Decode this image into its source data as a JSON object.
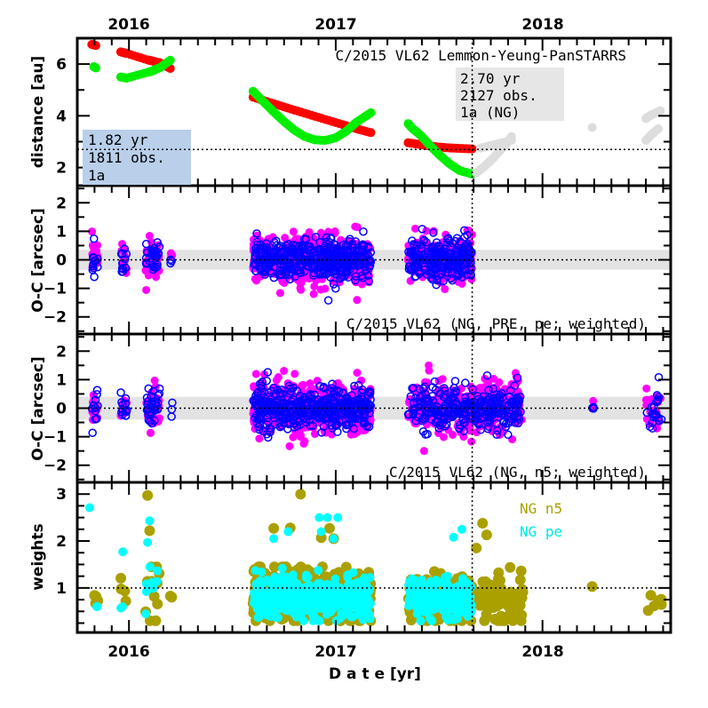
{
  "chart_data": [
    {
      "type": "scatter",
      "panel": "distance",
      "title": "C/2015 VL62 Lemmon-Yeung-PanSTARRS",
      "ylabel": "distance [au]",
      "xlim": [
        2015.75,
        2018.62
      ],
      "ylim": [
        1.3,
        7.0
      ],
      "top_ticks": [
        "2016",
        "2017",
        "2018"
      ],
      "yticks": [
        2,
        4,
        6
      ],
      "reference_line_y": 2.7,
      "reference_line_x": 2017.66,
      "boxes": [
        {
          "lines": [
            "1.82 yr",
            "1811 obs.",
            "1a"
          ],
          "color": "#b9cfea"
        },
        {
          "lines": [
            "2.70 yr",
            "2127 obs.",
            "1a (NG)"
          ],
          "color": "#e6e6e6"
        }
      ],
      "series": [
        {
          "color": "#ff0000",
          "points": [
            [
              2015.82,
              6.76
            ],
            [
              2015.84,
              6.72
            ],
            [
              2015.96,
              6.47
            ],
            [
              2015.98,
              6.43
            ],
            [
              2015.99,
              6.41
            ],
            [
              2016.09,
              6.16
            ],
            [
              2016.11,
              6.13
            ],
            [
              2016.13,
              6.08
            ],
            [
              2016.15,
              6.05
            ],
            [
              2016.2,
              5.83
            ],
            [
              2016.6,
              4.72
            ],
            [
              2016.7,
              4.47
            ],
            [
              2016.8,
              4.22
            ],
            [
              2016.9,
              3.98
            ],
            [
              2017.0,
              3.74
            ],
            [
              2017.1,
              3.5
            ],
            [
              2017.17,
              3.35
            ],
            [
              2017.35,
              2.96
            ],
            [
              2017.4,
              2.9
            ],
            [
              2017.45,
              2.84
            ],
            [
              2017.5,
              2.79
            ],
            [
              2017.55,
              2.76
            ],
            [
              2017.6,
              2.74
            ],
            [
              2017.66,
              2.72
            ]
          ]
        },
        {
          "color": "#00ee00",
          "points": [
            [
              2015.83,
              5.9
            ],
            [
              2015.84,
              5.85
            ],
            [
              2015.96,
              5.5
            ],
            [
              2015.98,
              5.47
            ],
            [
              2015.99,
              5.46
            ],
            [
              2016.09,
              5.68
            ],
            [
              2016.11,
              5.72
            ],
            [
              2016.13,
              5.8
            ],
            [
              2016.15,
              5.86
            ],
            [
              2016.2,
              6.15
            ],
            [
              2016.6,
              4.95
            ],
            [
              2016.65,
              4.55
            ],
            [
              2016.7,
              4.15
            ],
            [
              2016.75,
              3.78
            ],
            [
              2016.8,
              3.45
            ],
            [
              2016.85,
              3.2
            ],
            [
              2016.9,
              3.07
            ],
            [
              2016.95,
              3.05
            ],
            [
              2017.0,
              3.15
            ],
            [
              2017.05,
              3.4
            ],
            [
              2017.1,
              3.75
            ],
            [
              2017.17,
              4.12
            ],
            [
              2017.35,
              3.7
            ],
            [
              2017.37,
              3.52
            ],
            [
              2017.41,
              3.25
            ],
            [
              2017.45,
              2.9
            ],
            [
              2017.5,
              2.5
            ],
            [
              2017.55,
              2.15
            ],
            [
              2017.6,
              1.88
            ],
            [
              2017.66,
              1.75
            ]
          ]
        },
        {
          "color": "#dddddd",
          "points": [
            [
              2017.68,
              1.8
            ],
            [
              2017.72,
              2.05
            ],
            [
              2017.76,
              2.35
            ],
            [
              2017.8,
              2.7
            ],
            [
              2017.83,
              2.95
            ],
            [
              2017.85,
              3.2
            ],
            [
              2017.7,
              2.75
            ],
            [
              2017.75,
              2.85
            ],
            [
              2017.8,
              2.95
            ],
            [
              2017.85,
              3.05
            ],
            [
              2018.24,
              3.55
            ],
            [
              2018.5,
              3.05
            ],
            [
              2018.53,
              3.3
            ],
            [
              2018.56,
              3.5
            ],
            [
              2018.5,
              3.9
            ],
            [
              2018.53,
              4.05
            ],
            [
              2018.57,
              4.2
            ]
          ]
        }
      ]
    },
    {
      "type": "scatter",
      "panel": "residuals-1",
      "label": "C/2015 VL62 (NG, PRE, pe; weighted)",
      "ylabel": "O-C [arcsec]",
      "ylim": [
        -2.6,
        2.6
      ],
      "yticks": [
        -2,
        -1,
        0,
        1,
        2
      ],
      "band": 0.35,
      "series": [
        {
          "color": "#ff00ff",
          "marker": "filled",
          "clusters": [
            [
              2015.82,
              2015.85,
              14,
              0.35
            ],
            [
              2015.96,
              2015.99,
              14,
              0.3
            ],
            [
              2016.08,
              2016.15,
              35,
              0.4
            ],
            [
              2016.2,
              2016.21,
              3,
              0.3
            ],
            [
              2016.6,
              2017.17,
              500,
              0.42
            ],
            [
              2017.35,
              2017.66,
              260,
              0.4
            ]
          ]
        },
        {
          "color": "#0000ff",
          "marker": "open",
          "clusters": [
            [
              2015.82,
              2015.85,
              12,
              0.3
            ],
            [
              2015.96,
              2015.99,
              12,
              0.3
            ],
            [
              2016.08,
              2016.15,
              30,
              0.3
            ],
            [
              2016.2,
              2016.21,
              3,
              0.15
            ],
            [
              2016.6,
              2017.17,
              420,
              0.32
            ],
            [
              2017.35,
              2017.66,
              230,
              0.33
            ]
          ]
        }
      ]
    },
    {
      "type": "scatter",
      "panel": "residuals-2",
      "label": "C/2015 VL62 (NG, n5; weighted)",
      "ylabel": "O-C [arcsec]",
      "ylim": [
        -2.6,
        2.6
      ],
      "yticks": [
        -2,
        -1,
        0,
        1,
        2
      ],
      "band": 0.4,
      "series": [
        {
          "color": "#ff00ff",
          "marker": "filled",
          "clusters": [
            [
              2015.82,
              2015.85,
              14,
              0.35
            ],
            [
              2015.96,
              2015.99,
              14,
              0.3
            ],
            [
              2016.08,
              2016.15,
              35,
              0.4
            ],
            [
              2016.6,
              2017.17,
              500,
              0.45
            ],
            [
              2017.35,
              2017.9,
              330,
              0.45
            ],
            [
              2018.24,
              2018.25,
              2,
              0.1
            ],
            [
              2018.5,
              2018.58,
              18,
              0.4
            ]
          ]
        },
        {
          "color": "#0000ff",
          "marker": "open",
          "clusters": [
            [
              2015.82,
              2015.85,
              12,
              0.3
            ],
            [
              2015.96,
              2015.99,
              12,
              0.35
            ],
            [
              2016.08,
              2016.15,
              30,
              0.35
            ],
            [
              2016.2,
              2016.21,
              3,
              0.2
            ],
            [
              2016.6,
              2017.17,
              420,
              0.35
            ],
            [
              2017.35,
              2017.9,
              300,
              0.38
            ],
            [
              2018.24,
              2018.25,
              3,
              0.05
            ],
            [
              2018.5,
              2018.58,
              20,
              0.45
            ]
          ]
        }
      ]
    },
    {
      "type": "scatter",
      "panel": "weights",
      "ylabel": "weights",
      "xlabel": "D a t e [yr]",
      "ylim": [
        0.05,
        3.25
      ],
      "yticks": [
        1,
        2,
        3
      ],
      "xticks": [
        "2016",
        "2017",
        "2018"
      ],
      "reference_line_y": 1,
      "series": [
        {
          "name": "NG n5",
          "color": "#aaa000",
          "clusters": [
            [
              2015.83,
              2015.86,
              4,
              0.85,
              0.15
            ],
            [
              2015.96,
              2015.99,
              4,
              1.0,
              0.3
            ],
            [
              2016.08,
              2016.15,
              12,
              1.2,
              0.6
            ],
            [
              2016.2,
              2016.21,
              2,
              0.8,
              0.03
            ],
            [
              2016.6,
              2017.17,
              380,
              0.85,
              0.3
            ],
            [
              2017.35,
              2017.66,
              150,
              0.8,
              0.25
            ],
            [
              2017.66,
              2017.92,
              90,
              0.75,
              0.3
            ],
            [
              2018.24,
              2018.25,
              1,
              1.03,
              0
            ],
            [
              2018.5,
              2018.58,
              6,
              0.6,
              0.15
            ]
          ],
          "points": [
            [
              2016.09,
              2.97
            ],
            [
              2016.1,
              2.22
            ],
            [
              2016.83,
              3.0
            ],
            [
              2016.7,
              2.27
            ],
            [
              2016.78,
              2.28
            ],
            [
              2016.97,
              2.27
            ],
            [
              2016.93,
              2.07
            ],
            [
              2016.99,
              2.05
            ],
            [
              2017.71,
              2.38
            ],
            [
              2017.73,
              2.13
            ],
            [
              2017.68,
              1.85
            ]
          ]
        },
        {
          "name": "NG pe",
          "color": "#00ffff",
          "clusters": [
            [
              2015.84,
              2015.85,
              2,
              0.62,
              0.02
            ],
            [
              2015.96,
              2015.97,
              2,
              0.6,
              0.02
            ],
            [
              2016.08,
              2016.14,
              8,
              1.0,
              0.35
            ],
            [
              2016.6,
              2017.17,
              400,
              0.78,
              0.22
            ],
            [
              2017.35,
              2017.66,
              200,
              0.78,
              0.22
            ]
          ],
          "points": [
            [
              2015.81,
              2.71
            ],
            [
              2015.97,
              1.77
            ],
            [
              2016.1,
              2.43
            ],
            [
              2016.09,
              1.97
            ],
            [
              2016.92,
              2.5
            ],
            [
              2016.96,
              2.5
            ],
            [
              2017.01,
              2.5
            ],
            [
              2016.7,
              2.05
            ],
            [
              2016.77,
              2.2
            ],
            [
              2016.93,
              2.2
            ],
            [
              2016.99,
              2.05
            ],
            [
              2017.57,
              2.08
            ],
            [
              2017.61,
              2.25
            ]
          ]
        }
      ]
    }
  ]
}
